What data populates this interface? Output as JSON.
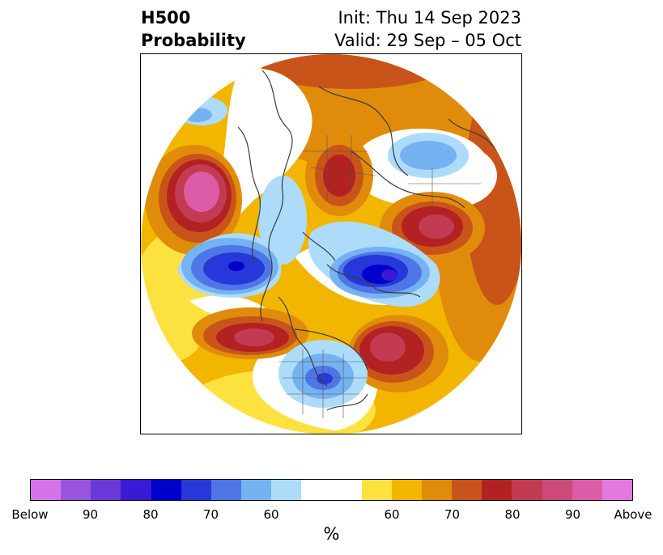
{
  "header": {
    "title_line1": "H500",
    "title_line2": "Probability",
    "init": "Init: Thu 14 Sep 2023",
    "valid": "Valid: 29 Sep – 05 Oct"
  },
  "map": {
    "projection": "north-polar-stereographic",
    "boundaries": "coastlines and political borders",
    "anomalies": [
      {
        "region": "Gulf of Alaska",
        "category": "above",
        "max_probability": 90
      },
      {
        "region": "Western Russia",
        "category": "above",
        "max_probability": 80
      },
      {
        "region": "Central Siberia",
        "category": "above",
        "max_probability": 80
      },
      {
        "region": "North Pacific / Japan",
        "category": "above",
        "max_probability": 80
      },
      {
        "region": "Greenland / Labrador Sea",
        "category": "above",
        "max_probability": 80
      },
      {
        "region": "Arctic Ocean / Canadian Archipelago",
        "category": "below",
        "max_probability": 90
      },
      {
        "region": "Bering Sea / Kamchatka",
        "category": "below",
        "max_probability": 80
      },
      {
        "region": "Central United States",
        "category": "below",
        "max_probability": 70
      },
      {
        "region": "Scandinavia",
        "category": "below",
        "max_probability": 60
      },
      {
        "region": "Eastern Siberia",
        "category": "below",
        "max_probability": 60
      }
    ]
  },
  "colorbar": {
    "unit": "%",
    "colors": [
      "#d672ea",
      "#9a55e0",
      "#6a38d9",
      "#3a1ad6",
      "#0000cc",
      "#2638d9",
      "#4e76e6",
      "#75b2f2",
      "#addcfa",
      "#ffffff",
      "#fde13e",
      "#f2b600",
      "#e08c0a",
      "#c9541a",
      "#b22222",
      "#c33a53",
      "#cc4a7a",
      "#dc5ca8",
      "#e478e0"
    ],
    "tick_labels": [
      "Below",
      "90",
      "80",
      "70",
      "60",
      "60",
      "70",
      "80",
      "90",
      "Above"
    ]
  }
}
